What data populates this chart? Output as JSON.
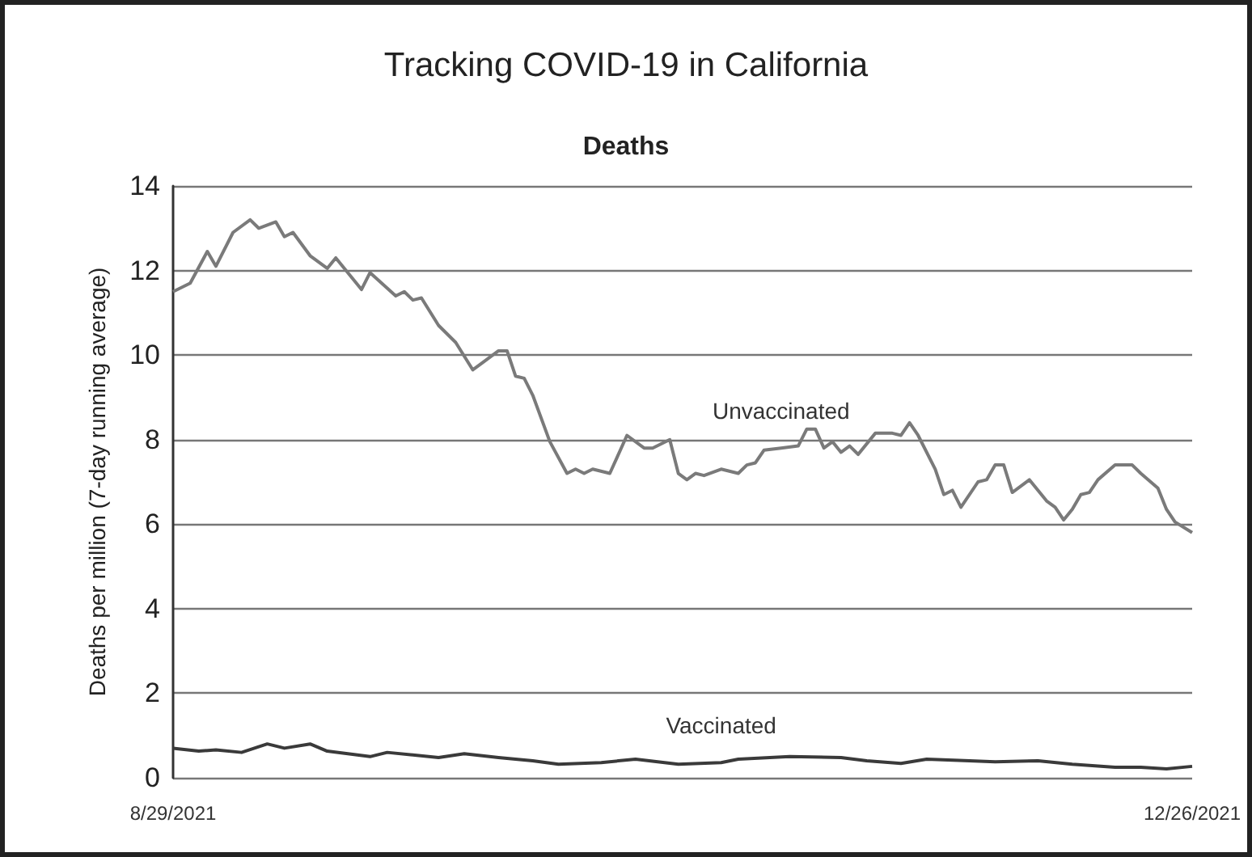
{
  "chart_data": {
    "type": "line",
    "title": "Tracking COVID-19 in California",
    "subtitle": "Deaths",
    "ylabel": "Deaths per million (7-day running average)",
    "xlim": [
      "2021-08-29",
      "2021-12-26"
    ],
    "xticks": [
      {
        "value": "2021-08-29",
        "label": "8/29/2021"
      },
      {
        "value": "2021-12-26",
        "label": "12/26/2021"
      }
    ],
    "ylim": [
      0,
      14
    ],
    "yticks": [
      0,
      2,
      4,
      6,
      8,
      10,
      12,
      14
    ],
    "grid": "y",
    "legend": false,
    "marker": "none",
    "line_style": "solid",
    "series": [
      {
        "name": "Unvaccinated",
        "color": "#7a7a7a",
        "x": [
          "2021-08-29",
          "2021-08-31",
          "2021-09-02",
          "2021-09-03",
          "2021-09-05",
          "2021-09-07",
          "2021-09-08",
          "2021-09-10",
          "2021-09-11",
          "2021-09-12",
          "2021-09-14",
          "2021-09-16",
          "2021-09-17",
          "2021-09-20",
          "2021-09-21",
          "2021-09-24",
          "2021-09-25",
          "2021-09-26",
          "2021-09-27",
          "2021-09-29",
          "2021-10-01",
          "2021-10-03",
          "2021-10-04",
          "2021-10-06",
          "2021-10-07",
          "2021-10-08",
          "2021-10-09",
          "2021-10-10",
          "2021-10-12",
          "2021-10-14",
          "2021-10-15",
          "2021-10-16",
          "2021-10-17",
          "2021-10-19",
          "2021-10-21",
          "2021-10-23",
          "2021-10-24",
          "2021-10-26",
          "2021-10-27",
          "2021-10-28",
          "2021-10-29",
          "2021-10-30",
          "2021-11-01",
          "2021-11-03",
          "2021-11-04",
          "2021-11-05",
          "2021-11-06",
          "2021-11-08",
          "2021-11-10",
          "2021-11-11",
          "2021-11-12",
          "2021-11-13",
          "2021-11-14",
          "2021-11-15",
          "2021-11-16",
          "2021-11-17",
          "2021-11-19",
          "2021-11-21",
          "2021-11-22",
          "2021-11-23",
          "2021-11-24",
          "2021-11-26",
          "2021-11-27",
          "2021-11-28",
          "2021-11-29",
          "2021-12-01",
          "2021-12-02",
          "2021-12-03",
          "2021-12-04",
          "2021-12-05",
          "2021-12-07",
          "2021-12-09",
          "2021-12-10",
          "2021-12-11",
          "2021-12-12",
          "2021-12-13",
          "2021-12-14",
          "2021-12-15",
          "2021-12-17",
          "2021-12-18",
          "2021-12-19",
          "2021-12-20",
          "2021-12-22",
          "2021-12-23",
          "2021-12-24",
          "2021-12-26"
        ],
        "values": [
          11.5,
          11.7,
          12.45,
          12.1,
          12.9,
          13.2,
          13.0,
          13.15,
          12.8,
          12.9,
          12.35,
          12.05,
          12.3,
          11.55,
          11.95,
          11.4,
          11.5,
          11.3,
          11.35,
          10.7,
          10.3,
          9.65,
          9.8,
          10.1,
          10.1,
          9.5,
          9.45,
          9.05,
          7.95,
          7.2,
          7.3,
          7.2,
          7.3,
          7.2,
          8.1,
          7.8,
          7.8,
          8.0,
          7.2,
          7.05,
          7.2,
          7.15,
          7.3,
          7.2,
          7.4,
          7.45,
          7.75,
          7.8,
          7.85,
          8.25,
          8.25,
          7.8,
          7.95,
          7.7,
          7.85,
          7.65,
          8.15,
          8.15,
          8.1,
          8.4,
          8.1,
          7.3,
          6.7,
          6.8,
          6.4,
          7.0,
          7.05,
          7.4,
          7.4,
          6.75,
          7.05,
          6.55,
          6.4,
          6.1,
          6.35,
          6.7,
          6.75,
          7.05,
          7.4,
          7.4,
          7.4,
          7.2,
          6.85,
          6.35,
          6.05,
          5.8
        ]
      },
      {
        "name": "Vaccinated",
        "color": "#3a3a3a",
        "x": [
          "2021-08-29",
          "2021-09-01",
          "2021-09-03",
          "2021-09-06",
          "2021-09-09",
          "2021-09-11",
          "2021-09-14",
          "2021-09-16",
          "2021-09-21",
          "2021-09-23",
          "2021-09-29",
          "2021-10-02",
          "2021-10-06",
          "2021-10-10",
          "2021-10-13",
          "2021-10-18",
          "2021-10-22",
          "2021-10-27",
          "2021-11-01",
          "2021-11-03",
          "2021-11-09",
          "2021-11-15",
          "2021-11-18",
          "2021-11-22",
          "2021-11-25",
          "2021-11-30",
          "2021-12-03",
          "2021-12-08",
          "2021-12-12",
          "2021-12-17",
          "2021-12-20",
          "2021-12-23",
          "2021-12-26"
        ],
        "values": [
          0.7,
          0.63,
          0.66,
          0.6,
          0.8,
          0.7,
          0.8,
          0.63,
          0.5,
          0.6,
          0.48,
          0.57,
          0.48,
          0.4,
          0.32,
          0.36,
          0.44,
          0.32,
          0.36,
          0.44,
          0.5,
          0.48,
          0.4,
          0.34,
          0.44,
          0.4,
          0.38,
          0.4,
          0.32,
          0.25,
          0.25,
          0.21,
          0.27
        ]
      }
    ]
  }
}
